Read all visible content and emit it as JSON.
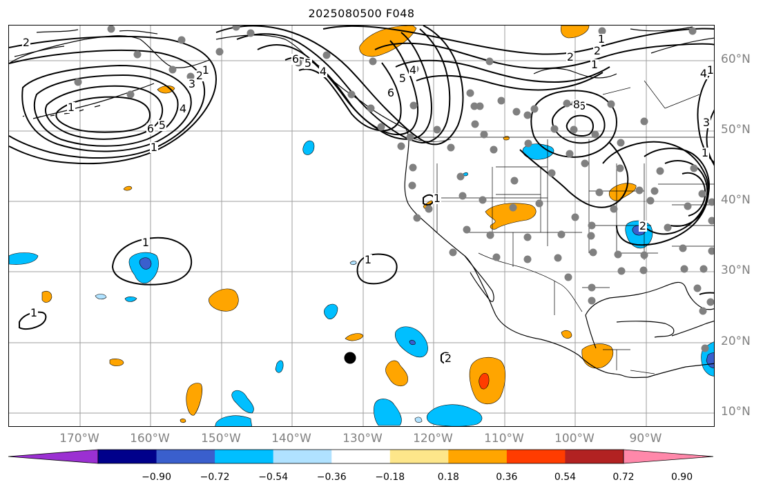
{
  "title": "2025080500 F048",
  "map": {
    "lon_labels": [
      "170°W",
      "160°W",
      "150°W",
      "140°W",
      "130°W",
      "120°W",
      "110°W",
      "100°W",
      "90°W"
    ],
    "lat_labels": [
      "60°N",
      "50°N",
      "40°N",
      "30°N",
      "20°N",
      "10°N"
    ],
    "gridline_color": "#9e9e9e",
    "station_color": "#808080",
    "contour_labels": [
      "2",
      "1",
      "1",
      "6",
      "5",
      "4",
      "3",
      "2",
      "1",
      "6",
      "5",
      "4",
      "6",
      "5",
      "4",
      "2",
      "1",
      "1",
      "2",
      "3",
      "4",
      "6",
      "8",
      "1",
      "2",
      "1",
      "1",
      "1",
      "1",
      "2",
      "1"
    ]
  },
  "colorbar": {
    "tick_labels": [
      "−0.90",
      "−0.72",
      "−0.54",
      "−0.36",
      "−0.18",
      "0.18",
      "0.36",
      "0.54",
      "0.72",
      "0.90"
    ],
    "colors": [
      "#9b30d2",
      "#00008b",
      "#3a5fcd",
      "#00bfff",
      "#b0e2ff",
      "#ffffff",
      "#fde68a",
      "#ffa500",
      "#ff3c00",
      "#b22222",
      "#ff88aa"
    ]
  }
}
